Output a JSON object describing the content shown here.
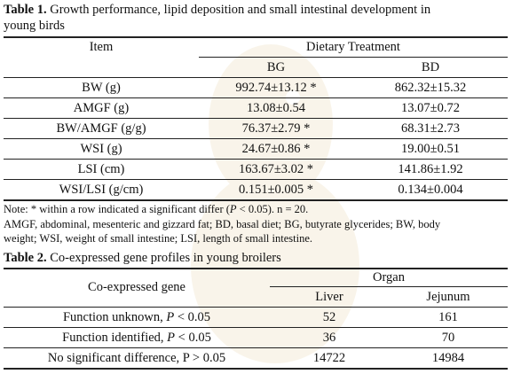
{
  "table1": {
    "label": "Table 1.",
    "title_line1": "Growth performance, lipid deposition and small intestinal development in",
    "title_line2": "young birds",
    "header_item": "Item",
    "header_group": "Dietary Treatment",
    "col_bg": "BG",
    "col_bd": "BD",
    "rows": [
      {
        "item": "BW (g)",
        "bg": "992.74±13.12 *",
        "bd": "862.32±15.32"
      },
      {
        "item": "AMGF (g)",
        "bg": "13.08±0.54",
        "bd": "13.07±0.72"
      },
      {
        "item": "BW/AMGF (g/g)",
        "bg": "76.37±2.79 *",
        "bd": "68.31±2.73"
      },
      {
        "item": "WSI (g)",
        "bg": "24.67±0.86 *",
        "bd": "19.00±0.51"
      },
      {
        "item": "LSI (cm)",
        "bg": "163.67±3.02 *",
        "bd": "141.86±1.92"
      },
      {
        "item": "WSI/LSI (g/cm)",
        "bg": "0.151±0.005 *",
        "bd": "0.134±0.004"
      }
    ],
    "note_prefix": "Note: * within a row indicated a significant differ (",
    "note_p": "P",
    "note_suffix": " < 0.05).  n = 20.",
    "abbrev_line1": "AMGF, abdominal, mesenteric and gizzard fat; BD, basal diet; BG, butyrate glycerides; BW, body",
    "abbrev_line2": "weight; WSI, weight of small intestine; LSI, length of small intestine."
  },
  "table2": {
    "label": "Table 2.",
    "title": "Co-expressed gene profiles in young broilers",
    "header_gene": "Co-expressed gene",
    "header_group": "Organ",
    "col_liver": "Liver",
    "col_jejunum": "Jejunum",
    "rows": [
      {
        "label": "Function unknown, ",
        "p": "P",
        "cond": " < 0.05",
        "liver": "52",
        "jejunum": "161"
      },
      {
        "label": "Function identified, ",
        "p": "P",
        "cond": " < 0.05",
        "liver": "36",
        "jejunum": "70"
      },
      {
        "label": "No significant difference, P > 0.05",
        "p": "",
        "cond": "",
        "liver": "14722",
        "jejunum": "14984"
      }
    ]
  }
}
